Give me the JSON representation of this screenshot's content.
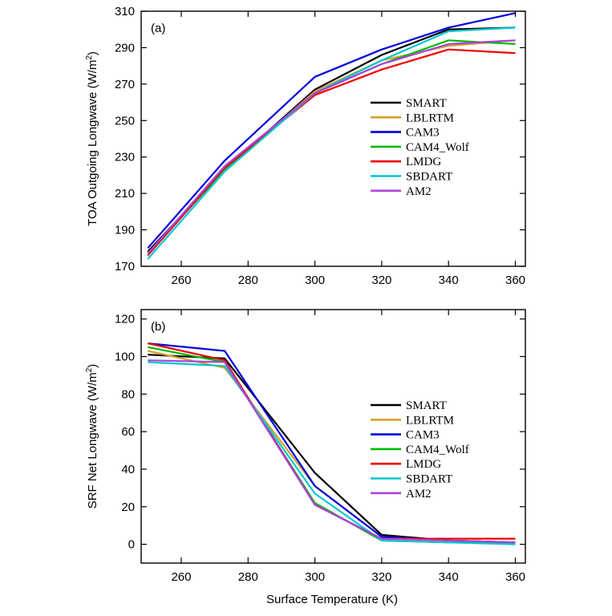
{
  "figure": {
    "xlabel": "Surface Temperature (K)"
  },
  "chart_data": [
    {
      "type": "line",
      "panel_label": "(a)",
      "title": "",
      "xlabel": "",
      "ylabel_main": "TOA Outgoing Longwave (W/m",
      "ylabel_sup": "2",
      "ylabel_close": ")",
      "xlim": [
        248,
        363
      ],
      "ylim": [
        170,
        310
      ],
      "xticks": [
        260,
        280,
        300,
        320,
        340,
        360
      ],
      "yticks": [
        170,
        190,
        210,
        230,
        250,
        270,
        290,
        310
      ],
      "legend_position": "center-right",
      "x": [
        250,
        273,
        300,
        320,
        340,
        360
      ],
      "series": [
        {
          "name": "SMART",
          "color": "#000000",
          "values": [
            178,
            223,
            267,
            286,
            300,
            301
          ]
        },
        {
          "name": "LBLRTM",
          "color": "#d4a02a",
          "values": [
            177,
            223,
            266,
            283,
            291,
            294
          ]
        },
        {
          "name": "CAM3",
          "color": "#0000dd",
          "values": [
            180,
            228,
            274,
            289,
            301,
            309
          ]
        },
        {
          "name": "CAM4_Wolf",
          "color": "#00bb00",
          "values": [
            177,
            223,
            265,
            281,
            294,
            292
          ]
        },
        {
          "name": "LMDG",
          "color": "#ee0000",
          "values": [
            176,
            224,
            264,
            278,
            289,
            287
          ]
        },
        {
          "name": "SBDART",
          "color": "#00c8d0",
          "values": [
            174,
            222,
            265,
            283,
            299,
            301
          ]
        },
        {
          "name": "AM2",
          "color": "#aa44dd",
          "values": [
            177,
            225,
            265,
            281,
            292,
            294
          ]
        }
      ]
    },
    {
      "type": "line",
      "panel_label": "(b)",
      "title": "",
      "xlabel": "Surface Temperature (K)",
      "ylabel_main": "SRF Net Longwave (W/m",
      "ylabel_sup": "2",
      "ylabel_close": ")",
      "xlim": [
        248,
        363
      ],
      "ylim": [
        -10,
        125
      ],
      "xticks": [
        260,
        280,
        300,
        320,
        340,
        360
      ],
      "yticks": [
        0,
        20,
        40,
        60,
        80,
        100,
        120
      ],
      "legend_position": "center-right",
      "x": [
        250,
        273,
        300,
        320,
        340,
        360
      ],
      "series": [
        {
          "name": "SMART",
          "color": "#000000",
          "values": [
            101,
            99,
            38,
            5,
            2,
            1
          ]
        },
        {
          "name": "LBLRTM",
          "color": "#d4a02a",
          "values": [
            103,
            94,
            31,
            4,
            2,
            1
          ]
        },
        {
          "name": "CAM3",
          "color": "#0000dd",
          "values": [
            107,
            103,
            31,
            4,
            2,
            1
          ]
        },
        {
          "name": "CAM4_Wolf",
          "color": "#00bb00",
          "values": [
            105,
            97,
            22,
            2,
            1,
            1
          ]
        },
        {
          "name": "LMDG",
          "color": "#ee0000",
          "values": [
            107,
            98,
            21,
            3,
            3,
            3
          ]
        },
        {
          "name": "SBDART",
          "color": "#00c8d0",
          "values": [
            97,
            95,
            27,
            2,
            1,
            0
          ]
        },
        {
          "name": "AM2",
          "color": "#aa44dd",
          "values": [
            98,
            97,
            21,
            3,
            2,
            1
          ]
        }
      ]
    }
  ]
}
